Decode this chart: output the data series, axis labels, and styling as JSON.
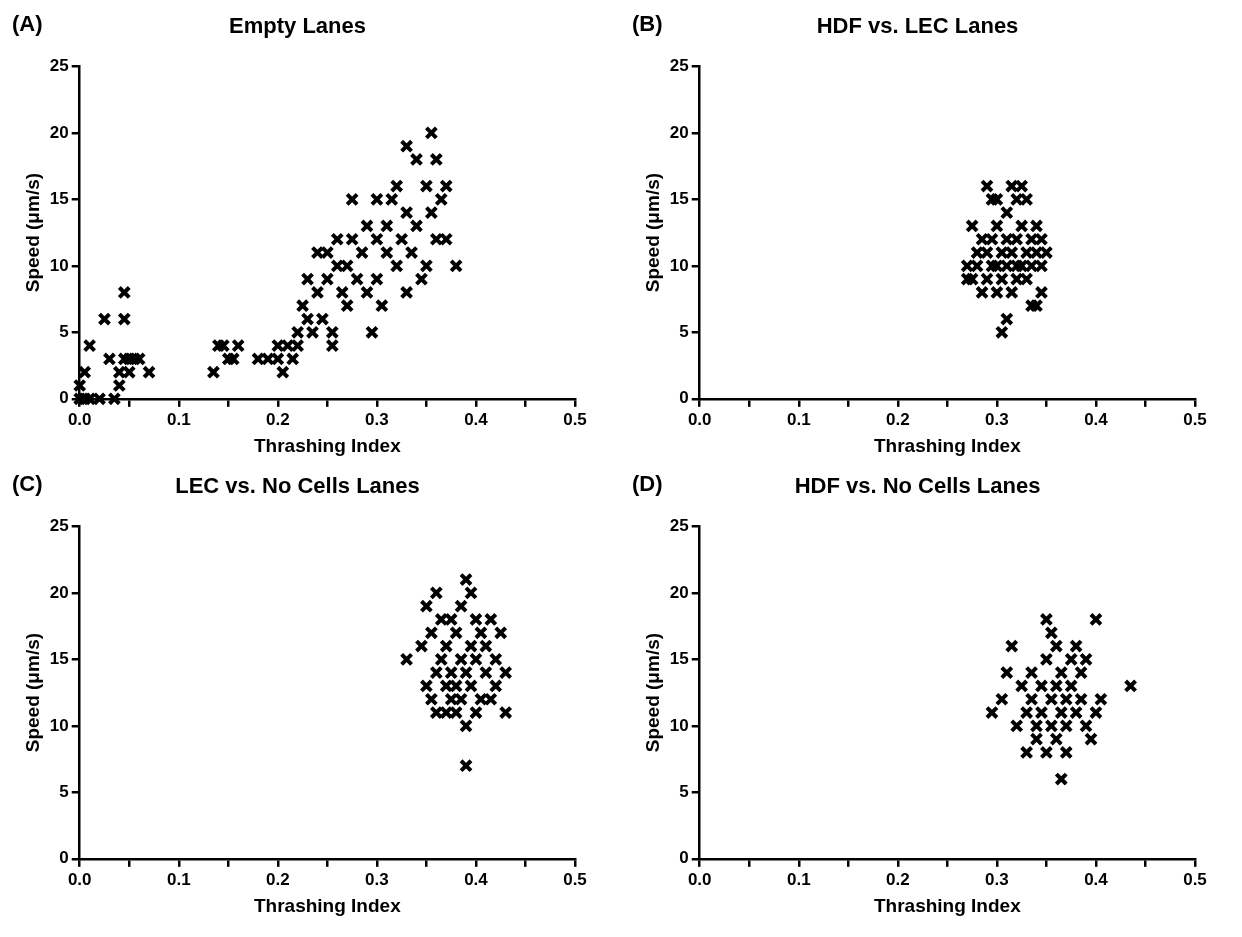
{
  "chart_data": [
    {
      "type": "scatter",
      "title": "Empty Lanes",
      "xlabel": "Thrashing Index",
      "ylabel": "Speed (μm/s)",
      "annotations": [
        "(A)"
      ],
      "marker": "cross",
      "grid": false,
      "legend": false,
      "xlim": [
        0,
        0.5
      ],
      "ylim": [
        0,
        25
      ],
      "xticks": [
        {
          "value": 0,
          "label": "0.0"
        },
        {
          "value": 0.05,
          "label": null
        },
        {
          "value": 0.1,
          "label": "0.1"
        },
        {
          "value": 0.15,
          "label": null
        },
        {
          "value": 0.2,
          "label": "0.2"
        },
        {
          "value": 0.25,
          "label": null
        },
        {
          "value": 0.3,
          "label": "0.3"
        },
        {
          "value": 0.35,
          "label": null
        },
        {
          "value": 0.4,
          "label": "0.4"
        },
        {
          "value": 0.45,
          "label": null
        },
        {
          "value": 0.5,
          "label": "0.5"
        }
      ],
      "yticks": [
        0,
        5,
        10,
        15,
        20,
        25
      ],
      "series": [
        {
          "color": "#000000",
          "x": [
            0,
            0,
            0.005,
            0.005,
            0.01,
            0.01,
            0.02,
            0.025,
            0.03,
            0.035,
            0.04,
            0.04,
            0.045,
            0.045,
            0.045,
            0.05,
            0.05,
            0.055,
            0.06,
            0.07,
            0.135,
            0.14,
            0.145,
            0.15,
            0.155,
            0.16,
            0.18,
            0.19,
            0.2,
            0.2,
            0.205,
            0.21,
            0.215,
            0.22,
            0.22,
            0.225,
            0.23,
            0.23,
            0.235,
            0.24,
            0.24,
            0.245,
            0.25,
            0.25,
            0.255,
            0.255,
            0.26,
            0.26,
            0.265,
            0.27,
            0.27,
            0.275,
            0.275,
            0.28,
            0.285,
            0.29,
            0.29,
            0.295,
            0.3,
            0.3,
            0.3,
            0.305,
            0.31,
            0.31,
            0.315,
            0.32,
            0.32,
            0.325,
            0.33,
            0.33,
            0.33,
            0.335,
            0.34,
            0.34,
            0.345,
            0.35,
            0.35,
            0.355,
            0.355,
            0.36,
            0.36,
            0.365,
            0.37,
            0.37,
            0.38
          ],
          "values": [
            0,
            1,
            0,
            2,
            0,
            4,
            0,
            6,
            3,
            0,
            1,
            2,
            3,
            8,
            6,
            2,
            3,
            3,
            3,
            2,
            2,
            4,
            4,
            3,
            3,
            4,
            3,
            3,
            4,
            3,
            2,
            4,
            3,
            5,
            4,
            7,
            6,
            9,
            5,
            11,
            8,
            6,
            9,
            11,
            4,
            5,
            10,
            12,
            8,
            10,
            7,
            15,
            12,
            9,
            11,
            13,
            8,
            5,
            12,
            9,
            15,
            7,
            11,
            13,
            15,
            16,
            10,
            12,
            19,
            14,
            8,
            11,
            18,
            13,
            9,
            16,
            10,
            20,
            14,
            12,
            18,
            15,
            12,
            16,
            10
          ]
        }
      ]
    },
    {
      "type": "scatter",
      "title": "HDF vs. LEC Lanes",
      "xlabel": "Thrashing Index",
      "ylabel": "Speed (μm/s)",
      "annotations": [
        "(B)"
      ],
      "marker": "cross",
      "grid": false,
      "legend": false,
      "xlim": [
        0,
        0.5
      ],
      "ylim": [
        0,
        25
      ],
      "xticks": [
        {
          "value": 0,
          "label": "0.0"
        },
        {
          "value": 0.05,
          "label": null
        },
        {
          "value": 0.1,
          "label": "0.1"
        },
        {
          "value": 0.15,
          "label": null
        },
        {
          "value": 0.2,
          "label": "0.2"
        },
        {
          "value": 0.25,
          "label": null
        },
        {
          "value": 0.3,
          "label": "0.3"
        },
        {
          "value": 0.35,
          "label": null
        },
        {
          "value": 0.4,
          "label": "0.4"
        },
        {
          "value": 0.45,
          "label": null
        },
        {
          "value": 0.5,
          "label": "0.5"
        }
      ],
      "yticks": [
        0,
        5,
        10,
        15,
        20,
        25
      ],
      "series": [
        {
          "color": "#000000",
          "x": [
            0.27,
            0.27,
            0.275,
            0.275,
            0.28,
            0.28,
            0.285,
            0.285,
            0.29,
            0.29,
            0.29,
            0.295,
            0.295,
            0.295,
            0.3,
            0.3,
            0.3,
            0.3,
            0.305,
            0.305,
            0.305,
            0.31,
            0.31,
            0.31,
            0.31,
            0.315,
            0.315,
            0.315,
            0.32,
            0.32,
            0.32,
            0.32,
            0.325,
            0.325,
            0.325,
            0.33,
            0.33,
            0.33,
            0.335,
            0.335,
            0.335,
            0.34,
            0.34,
            0.34,
            0.345,
            0.345,
            0.345,
            0.35
          ],
          "values": [
            9,
            10,
            13,
            9,
            10,
            11,
            12,
            8,
            16,
            11,
            9,
            15,
            12,
            10,
            13,
            10,
            8,
            15,
            5,
            11,
            9,
            6,
            12,
            10,
            14,
            16,
            11,
            8,
            15,
            9,
            12,
            10,
            16,
            13,
            10,
            15,
            11,
            9,
            12,
            7,
            10,
            13,
            7,
            11,
            12,
            8,
            10,
            11
          ]
        }
      ]
    },
    {
      "type": "scatter",
      "title": "LEC vs. No Cells Lanes",
      "xlabel": "Thrashing Index",
      "ylabel": "Speed (μm/s)",
      "annotations": [
        "(C)"
      ],
      "marker": "cross",
      "grid": false,
      "legend": false,
      "xlim": [
        0,
        0.5
      ],
      "ylim": [
        0,
        25
      ],
      "xticks": [
        {
          "value": 0,
          "label": "0.0"
        },
        {
          "value": 0.05,
          "label": null
        },
        {
          "value": 0.1,
          "label": "0.1"
        },
        {
          "value": 0.15,
          "label": null
        },
        {
          "value": 0.2,
          "label": "0.2"
        },
        {
          "value": 0.25,
          "label": null
        },
        {
          "value": 0.3,
          "label": "0.3"
        },
        {
          "value": 0.35,
          "label": null
        },
        {
          "value": 0.4,
          "label": "0.4"
        },
        {
          "value": 0.45,
          "label": null
        },
        {
          "value": 0.5,
          "label": "0.5"
        }
      ],
      "yticks": [
        0,
        5,
        10,
        15,
        20,
        25
      ],
      "series": [
        {
          "color": "#000000",
          "x": [
            0.33,
            0.345,
            0.35,
            0.35,
            0.355,
            0.355,
            0.36,
            0.36,
            0.36,
            0.365,
            0.365,
            0.37,
            0.37,
            0.37,
            0.375,
            0.375,
            0.375,
            0.38,
            0.38,
            0.38,
            0.385,
            0.385,
            0.385,
            0.39,
            0.39,
            0.39,
            0.39,
            0.395,
            0.395,
            0.395,
            0.4,
            0.4,
            0.4,
            0.405,
            0.405,
            0.41,
            0.41,
            0.415,
            0.415,
            0.42,
            0.42,
            0.425,
            0.43,
            0.43
          ],
          "values": [
            15,
            16,
            19,
            13,
            17,
            12,
            20,
            14,
            11,
            15,
            18,
            13,
            16,
            11,
            18,
            14,
            12,
            17,
            13,
            11,
            15,
            19,
            12,
            21,
            14,
            10,
            7,
            16,
            13,
            20,
            18,
            15,
            11,
            17,
            12,
            14,
            16,
            18,
            12,
            15,
            13,
            17,
            14,
            11
          ]
        }
      ]
    },
    {
      "type": "scatter",
      "title": "HDF vs. No Cells Lanes",
      "xlabel": "Thrashing Index",
      "ylabel": "Speed (μm/s)",
      "annotations": [
        "(D)"
      ],
      "marker": "cross",
      "grid": false,
      "legend": false,
      "xlim": [
        0,
        0.5
      ],
      "ylim": [
        0,
        25
      ],
      "xticks": [
        {
          "value": 0,
          "label": "0.0"
        },
        {
          "value": 0.05,
          "label": null
        },
        {
          "value": 0.1,
          "label": "0.1"
        },
        {
          "value": 0.15,
          "label": null
        },
        {
          "value": 0.2,
          "label": "0.2"
        },
        {
          "value": 0.25,
          "label": null
        },
        {
          "value": 0.3,
          "label": "0.3"
        },
        {
          "value": 0.35,
          "label": null
        },
        {
          "value": 0.4,
          "label": "0.4"
        },
        {
          "value": 0.45,
          "label": null
        },
        {
          "value": 0.5,
          "label": "0.5"
        }
      ],
      "yticks": [
        0,
        5,
        10,
        15,
        20,
        25
      ],
      "series": [
        {
          "color": "#000000",
          "x": [
            0.295,
            0.305,
            0.31,
            0.315,
            0.32,
            0.325,
            0.33,
            0.33,
            0.335,
            0.335,
            0.34,
            0.34,
            0.345,
            0.345,
            0.35,
            0.35,
            0.35,
            0.355,
            0.355,
            0.355,
            0.36,
            0.36,
            0.36,
            0.365,
            0.365,
            0.365,
            0.37,
            0.37,
            0.37,
            0.375,
            0.375,
            0.38,
            0.38,
            0.385,
            0.385,
            0.39,
            0.39,
            0.395,
            0.4,
            0.4,
            0.405,
            0.435
          ],
          "values": [
            11,
            12,
            14,
            16,
            10,
            13,
            8,
            11,
            12,
            14,
            10,
            9,
            13,
            11,
            18,
            8,
            15,
            12,
            10,
            17,
            16,
            9,
            13,
            6,
            11,
            14,
            8,
            12,
            10,
            15,
            13,
            11,
            16,
            12,
            14,
            10,
            15,
            9,
            18,
            11,
            12,
            13
          ]
        }
      ]
    }
  ]
}
